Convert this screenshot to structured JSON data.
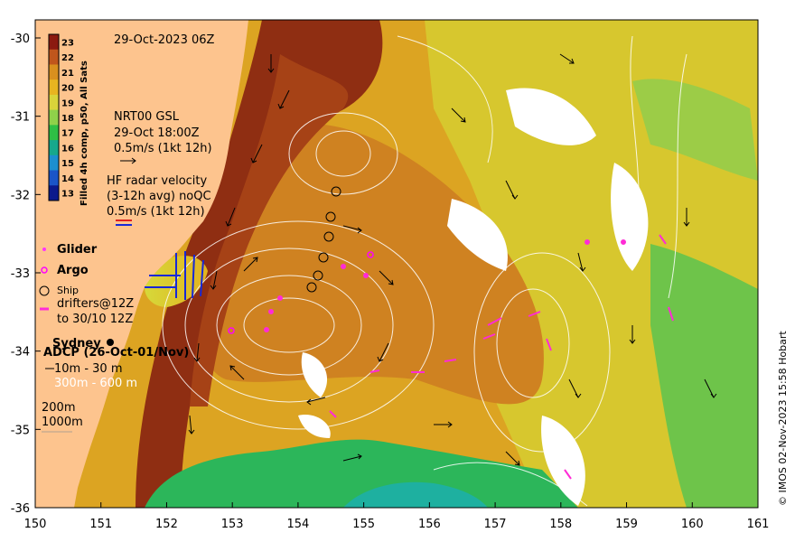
{
  "map": {
    "timestamp": "29-Oct-2023 06Z",
    "credit": "© IMOS 02-Nov-2023 15:58 Hobart",
    "x_ticks": [
      "150",
      "151",
      "152",
      "153",
      "154",
      "155",
      "156",
      "157",
      "158",
      "159",
      "160",
      "161"
    ],
    "y_ticks": [
      "-30",
      "-31",
      "-32",
      "-33",
      "-34",
      "-35",
      "-36"
    ]
  },
  "colorbar": {
    "label": "Filled 4h comp, p50, All Sats",
    "ticks": [
      "23",
      "22",
      "21",
      "20",
      "19",
      "18",
      "17",
      "16",
      "15",
      "14",
      "13"
    ],
    "colors": [
      "#8b1a10",
      "#c0561c",
      "#d9901e",
      "#e8b420",
      "#d9d43a",
      "#8fd14a",
      "#2fbf45",
      "#16a88c",
      "#1c8fd0",
      "#1b55c8",
      "#0c1a8c"
    ]
  },
  "legend": {
    "nrt_line1": "NRT00 GSL",
    "nrt_line2": "29-Oct 18:00Z",
    "nrt_line3": "0.5m/s (1kt 12h)",
    "hf_line1": "HF radar velocity",
    "hf_line2": "(3-12h avg) noQC",
    "hf_line3": "0.5m/s (1kt 12h)",
    "glider": "Glider",
    "argo": "Argo",
    "ship": "Ship",
    "drifters_line1": "drifters@12Z",
    "drifters_line2": "to 30/10 12Z",
    "sydney": "Sydney",
    "adcp": "ADCP (26-Oct-01/Nov)",
    "adcp_shallow": "10m - 30 m",
    "adcp_deep": "300m - 600 m",
    "depth_200": "200m",
    "depth_1000": "1000m"
  },
  "colors": {
    "land": "#fdc48e",
    "glider": "#ff33ff",
    "argo": "#ff00ff",
    "drifter": "#ff2bd6",
    "hf_radar": "#1628d8"
  }
}
